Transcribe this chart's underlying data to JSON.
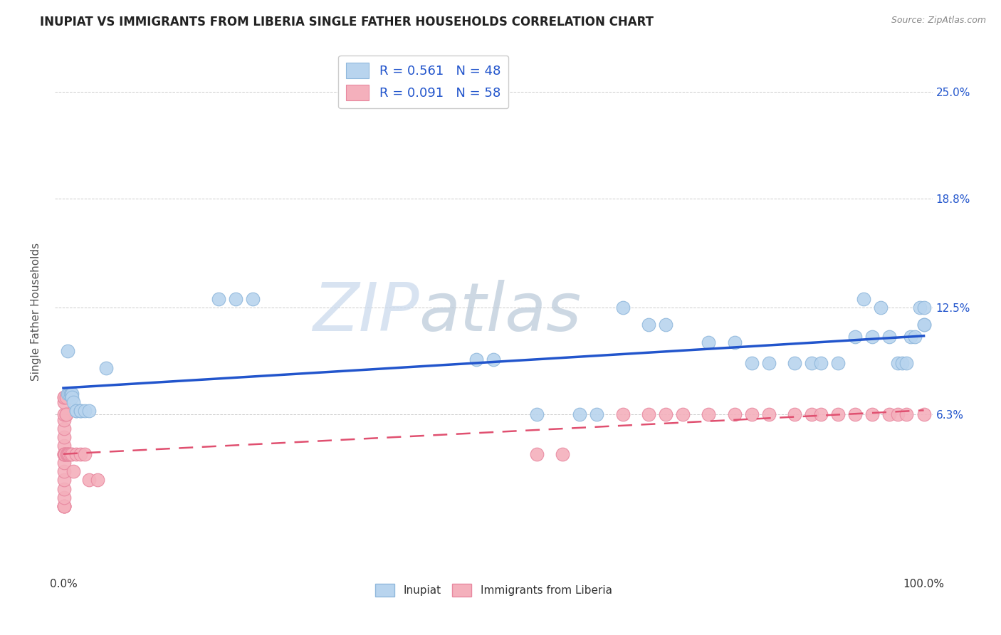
{
  "title": "INUPIAT VS IMMIGRANTS FROM LIBERIA SINGLE FATHER HOUSEHOLDS CORRELATION CHART",
  "source": "Source: ZipAtlas.com",
  "ylabel": "Single Father Households",
  "ytick_labels": [
    "6.3%",
    "12.5%",
    "18.8%",
    "25.0%"
  ],
  "ytick_values": [
    0.063,
    0.125,
    0.188,
    0.25
  ],
  "xlim": [
    -0.01,
    1.01
  ],
  "ylim": [
    -0.03,
    0.275
  ],
  "legend_entries": [
    {
      "label": "R = 0.561   N = 48",
      "color": "#b8d4ee"
    },
    {
      "label": "R = 0.091   N = 58",
      "color": "#f4b0bc"
    }
  ],
  "legend_label_inupiat": "Inupiat",
  "legend_label_liberia": "Immigrants from Liberia",
  "inupiat_color": "#b8d4ee",
  "inupiat_edge": "#90b8dc",
  "liberia_color": "#f4b0bc",
  "liberia_edge": "#e888a0",
  "inupiat_line_color": "#2255cc",
  "liberia_line_color": "#e05070",
  "inupiat_x": [
    0.005,
    0.005,
    0.007,
    0.008,
    0.009,
    0.01,
    0.01,
    0.012,
    0.015,
    0.015,
    0.02,
    0.02,
    0.025,
    0.03,
    0.05,
    0.18,
    0.2,
    0.22,
    0.48,
    0.5,
    0.55,
    0.6,
    0.62,
    0.65,
    0.68,
    0.7,
    0.75,
    0.78,
    0.8,
    0.82,
    0.85,
    0.87,
    0.88,
    0.9,
    0.92,
    0.93,
    0.94,
    0.95,
    0.96,
    0.97,
    0.975,
    0.98,
    0.985,
    0.99,
    0.995,
    1.0,
    1.0,
    1.0
  ],
  "inupiat_y": [
    0.1,
    0.075,
    0.075,
    0.075,
    0.075,
    0.075,
    0.073,
    0.07,
    0.065,
    0.065,
    0.065,
    0.065,
    0.065,
    0.065,
    0.09,
    0.13,
    0.13,
    0.13,
    0.095,
    0.095,
    0.063,
    0.063,
    0.063,
    0.125,
    0.115,
    0.115,
    0.105,
    0.105,
    0.093,
    0.093,
    0.093,
    0.093,
    0.093,
    0.093,
    0.108,
    0.13,
    0.108,
    0.125,
    0.108,
    0.093,
    0.093,
    0.093,
    0.108,
    0.108,
    0.125,
    0.125,
    0.115,
    0.115
  ],
  "liberia_x": [
    0.001,
    0.001,
    0.001,
    0.001,
    0.001,
    0.001,
    0.001,
    0.001,
    0.001,
    0.001,
    0.001,
    0.001,
    0.001,
    0.001,
    0.001,
    0.001,
    0.001,
    0.001,
    0.001,
    0.001,
    0.002,
    0.002,
    0.003,
    0.003,
    0.003,
    0.004,
    0.004,
    0.005,
    0.006,
    0.007,
    0.008,
    0.01,
    0.012,
    0.015,
    0.02,
    0.025,
    0.03,
    0.04,
    0.55,
    0.58,
    0.65,
    0.68,
    0.7,
    0.72,
    0.75,
    0.78,
    0.8,
    0.82,
    0.85,
    0.87,
    0.88,
    0.9,
    0.92,
    0.94,
    0.96,
    0.97,
    0.98,
    1.0
  ],
  "liberia_y": [
    0.01,
    0.01,
    0.01,
    0.01,
    0.015,
    0.02,
    0.025,
    0.03,
    0.035,
    0.04,
    0.045,
    0.05,
    0.055,
    0.06,
    0.063,
    0.07,
    0.073,
    0.073,
    0.04,
    0.04,
    0.04,
    0.04,
    0.063,
    0.063,
    0.073,
    0.04,
    0.04,
    0.04,
    0.04,
    0.04,
    0.04,
    0.04,
    0.03,
    0.04,
    0.04,
    0.04,
    0.025,
    0.025,
    0.04,
    0.04,
    0.063,
    0.063,
    0.063,
    0.063,
    0.063,
    0.063,
    0.063,
    0.063,
    0.063,
    0.063,
    0.063,
    0.063,
    0.063,
    0.063,
    0.063,
    0.063,
    0.063,
    0.063
  ],
  "watermark_zip": "ZIP",
  "watermark_atlas": "atlas",
  "background_color": "#ffffff",
  "grid_color": "#cccccc"
}
